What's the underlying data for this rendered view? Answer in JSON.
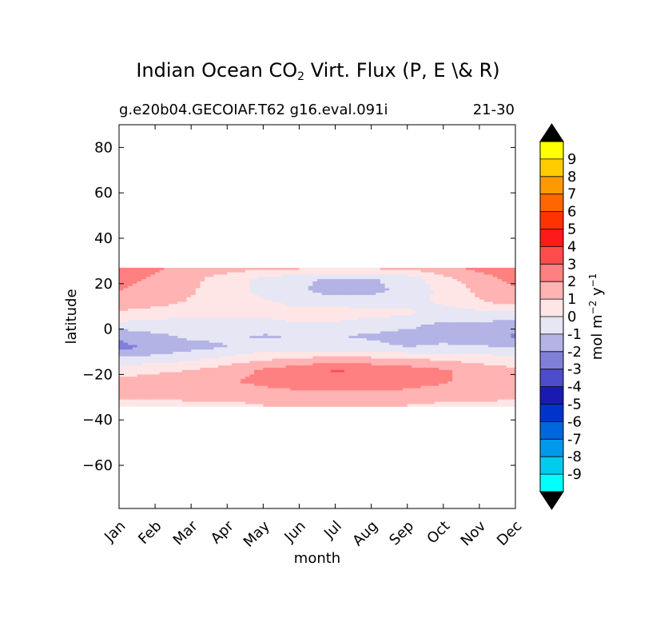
{
  "chart_data": {
    "type": "heatmap",
    "title_main": "Indian Ocean CO",
    "title_sub": "2",
    "title_rest": " Virt. Flux (P, E \\& R)",
    "subtitle_left": "g.e20b04.GECOIAF.T62 g16.eval.091i",
    "subtitle_right": "21-30",
    "xlabel": "month",
    "ylabel": "latitude",
    "x_ticks": [
      "Jan",
      "Feb",
      "Mar",
      "Apr",
      "May",
      "Jun",
      "Jul",
      "Aug",
      "Sep",
      "Oct",
      "Nov",
      "Dec"
    ],
    "y_ticks": [
      80,
      60,
      40,
      20,
      0,
      -20,
      -40,
      -60
    ],
    "ylim": [
      -79,
      90
    ],
    "data_lat_range": [
      -34,
      27
    ],
    "colorbar_label": "mol m",
    "colorbar_label_sup1": "−2",
    "colorbar_label_mid": " y",
    "colorbar_label_sup2": "−1",
    "colorbar_levels": [
      "9",
      "8",
      "7",
      "6",
      "5",
      "4",
      "3",
      "2",
      "1",
      "0",
      "-1",
      "-2",
      "-3",
      "-4",
      "-5",
      "-6",
      "-7",
      "-8",
      "-9"
    ],
    "colorbar_colors": [
      "#ffff00",
      "#ffcc00",
      "#ff9900",
      "#ff6600",
      "#ff3300",
      "#ff1a1a",
      "#ff4d4d",
      "#ff8080",
      "#ffb3b3",
      "#ffe6e6",
      "#e6e6f5",
      "#b3b3e6",
      "#8080d9",
      "#4d4dcc",
      "#1a1ab3",
      "#0033cc",
      "#0066dd",
      "#0099ee",
      "#00ccee",
      "#00ffff"
    ],
    "colorbar_extend_colors": [
      "#000000",
      "#000000"
    ],
    "months": [
      1,
      2,
      3,
      4,
      5,
      6,
      7,
      8,
      9,
      10,
      11,
      12
    ],
    "latitudes": [
      27,
      22,
      17,
      12,
      7,
      2,
      -3,
      -8,
      -13,
      -18,
      -23,
      -28,
      -33
    ],
    "values": [
      [
        2.5,
        2.2,
        1.6,
        1.4,
        1.3,
        1.2,
        1.2,
        1.2,
        1.3,
        1.8,
        2.3,
        2.6
      ],
      [
        2.4,
        1.8,
        1.2,
        0.6,
        -0.3,
        -0.8,
        -1.2,
        -1.1,
        -0.6,
        0.6,
        1.6,
        2.3
      ],
      [
        2.0,
        1.6,
        1.1,
        0.5,
        -0.4,
        -0.9,
        -1.4,
        -1.3,
        -0.7,
        0.3,
        1.2,
        1.9
      ],
      [
        1.7,
        1.4,
        0.9,
        0.6,
        0.2,
        -0.3,
        -0.5,
        -0.6,
        -0.4,
        0.2,
        0.9,
        1.5
      ],
      [
        0.8,
        0.5,
        0.3,
        0.2,
        0.1,
        0.4,
        0.6,
        0.4,
        0.2,
        -0.5,
        -0.3,
        -0.2
      ],
      [
        -0.3,
        -0.4,
        -0.5,
        -0.3,
        -0.2,
        -0.1,
        -0.2,
        -0.6,
        -0.8,
        -1.2,
        -1.2,
        -1.5
      ],
      [
        -1.8,
        -1.2,
        -0.8,
        -0.9,
        -1.1,
        -1.0,
        -1.0,
        -1.1,
        -1.3,
        -1.2,
        -1.4,
        -2.2
      ],
      [
        -2.3,
        -1.8,
        -1.3,
        -1.0,
        -0.6,
        -0.5,
        -0.6,
        -0.8,
        -1.0,
        -0.9,
        -0.9,
        -1.1
      ],
      [
        -0.8,
        -0.6,
        -0.3,
        0.3,
        0.8,
        1.1,
        1.3,
        1.2,
        1.0,
        0.8,
        0.5,
        0.3
      ],
      [
        0.5,
        0.8,
        1.0,
        1.5,
        2.1,
        2.6,
        3.1,
        2.8,
        2.5,
        2.1,
        1.6,
        1.2
      ],
      [
        1.3,
        1.4,
        1.5,
        1.9,
        2.3,
        2.7,
        2.8,
        2.7,
        2.4,
        2.1,
        1.7,
        1.4
      ],
      [
        1.2,
        1.2,
        1.3,
        1.4,
        1.6,
        1.8,
        1.9,
        1.9,
        1.8,
        1.6,
        1.4,
        1.3
      ],
      [
        0.8,
        0.8,
        0.9,
        0.9,
        1.0,
        1.1,
        1.2,
        1.1,
        1.0,
        0.9,
        0.9,
        0.8
      ]
    ]
  }
}
